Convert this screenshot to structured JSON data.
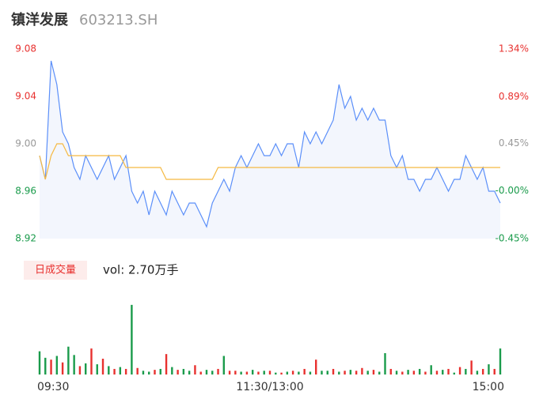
{
  "chart_data": [
    {
      "type": "line",
      "title": "镇洋发展",
      "subtitle": "603213.SH",
      "x": [
        0,
        3,
        6,
        9,
        12,
        15,
        18,
        21,
        24,
        27,
        30,
        33,
        36,
        39,
        42,
        45,
        48,
        51,
        54,
        57,
        60,
        63,
        66,
        69,
        72,
        75,
        78,
        81,
        84,
        87,
        90,
        93,
        96,
        99,
        102,
        105,
        108,
        111,
        114,
        117,
        120,
        123,
        126,
        129,
        132,
        135,
        138,
        141,
        144,
        147,
        150,
        153,
        156,
        159,
        162,
        165,
        168,
        171,
        174,
        177,
        180,
        183,
        186,
        189,
        192,
        195,
        198,
        201,
        204,
        207,
        210,
        213,
        216,
        219,
        222,
        225,
        228,
        231,
        234,
        237,
        240
      ],
      "xlim": [
        0,
        240
      ],
      "xticks": [
        {
          "value": 0,
          "label": "09:30"
        },
        {
          "value": 120,
          "label": "11:30/13:00"
        },
        {
          "value": 240,
          "label": "15:00"
        }
      ],
      "series": [
        {
          "color": "#5b8ff9",
          "values": [
            8.99,
            8.97,
            9.07,
            9.05,
            9.01,
            9.0,
            8.98,
            8.97,
            8.99,
            8.98,
            8.97,
            8.98,
            8.99,
            8.97,
            8.98,
            8.99,
            8.96,
            8.95,
            8.96,
            8.94,
            8.96,
            8.95,
            8.94,
            8.96,
            8.95,
            8.94,
            8.95,
            8.95,
            8.94,
            8.93,
            8.95,
            8.96,
            8.97,
            8.96,
            8.98,
            8.99,
            8.98,
            8.99,
            9.0,
            8.99,
            8.99,
            9.0,
            8.99,
            9.0,
            9.0,
            8.98,
            9.01,
            9.0,
            9.01,
            9.0,
            9.01,
            9.02,
            9.05,
            9.03,
            9.04,
            9.02,
            9.03,
            9.02,
            9.03,
            9.02,
            9.02,
            8.99,
            8.98,
            8.99,
            8.97,
            8.97,
            8.96,
            8.97,
            8.97,
            8.98,
            8.97,
            8.96,
            8.97,
            8.97,
            8.99,
            8.98,
            8.97,
            8.98,
            8.96,
            8.96,
            8.95
          ]
        },
        {
          "color": "#f5b942",
          "values": [
            8.99,
            8.97,
            8.99,
            9.0,
            9.0,
            8.99,
            8.99,
            8.99,
            8.99,
            8.99,
            8.99,
            8.99,
            8.99,
            8.99,
            8.99,
            8.98,
            8.98,
            8.98,
            8.98,
            8.98,
            8.98,
            8.98,
            8.97,
            8.97,
            8.97,
            8.97,
            8.97,
            8.97,
            8.97,
            8.97,
            8.97,
            8.98,
            8.98,
            8.98,
            8.98,
            8.98,
            8.98,
            8.98,
            8.98,
            8.98,
            8.98,
            8.98,
            8.98,
            8.98,
            8.98,
            8.98,
            8.98,
            8.98,
            8.98,
            8.98,
            8.98,
            8.98,
            8.98,
            8.98,
            8.98,
            8.98,
            8.98,
            8.98,
            8.98,
            8.98,
            8.98,
            8.98,
            8.98,
            8.98,
            8.98,
            8.98,
            8.98,
            8.98,
            8.98,
            8.98,
            8.98,
            8.98,
            8.98,
            8.98,
            8.98,
            8.98,
            8.98,
            8.98,
            8.98,
            8.98,
            8.98
          ]
        }
      ],
      "area_color": "#f3f6fd",
      "ylim": [
        8.92,
        9.08
      ],
      "yticks": [
        {
          "value": 9.08,
          "label": "9.08"
        },
        {
          "value": 9.04,
          "label": "9.04"
        },
        {
          "value": 9.0,
          "label": "9.00"
        },
        8.96,
        8.92
      ],
      "ytick_colors": [
        "#e8312f",
        "#e8312f",
        "#999999",
        "#1a9b4b",
        "#1a9b4b"
      ],
      "y2lim": [
        -0.45,
        1.34
      ],
      "y2ticks": [
        {
          "value": 1.34,
          "label": "1.34%"
        },
        {
          "value": 0.89,
          "label": "0.89%"
        },
        {
          "value": 0.45,
          "label": "0.45%"
        },
        {
          "value": 0,
          "label": "-0.00%"
        },
        {
          "value": -0.45,
          "label": "-0.45%"
        }
      ],
      "y2tick_colors": [
        "#e8312f",
        "#e8312f",
        "#999999",
        "#1a9b4b",
        "#1a9b4b"
      ]
    },
    {
      "type": "bar",
      "legend_button": "日成交量",
      "summary": "vol: 2.70万手",
      "ylim": [
        0,
        800
      ],
      "values": [
        250,
        180,
        160,
        200,
        130,
        300,
        210,
        90,
        120,
        280,
        110,
        170,
        90,
        60,
        80,
        60,
        750,
        70,
        40,
        30,
        50,
        60,
        220,
        80,
        50,
        60,
        40,
        100,
        30,
        50,
        40,
        60,
        200,
        40,
        40,
        30,
        30,
        50,
        30,
        40,
        40,
        20,
        20,
        30,
        40,
        30,
        60,
        30,
        160,
        40,
        40,
        60,
        30,
        40,
        50,
        40,
        70,
        40,
        50,
        30,
        230,
        60,
        40,
        30,
        50,
        40,
        60,
        30,
        100,
        40,
        50,
        60,
        20,
        80,
        60,
        150,
        40,
        60,
        110,
        60,
        280
      ],
      "colors": [
        "#1a9b4b",
        "#1a9b4b",
        "#e8312f",
        "#1a9b4b",
        "#e8312f",
        "#1a9b4b",
        "#1a9b4b",
        "#e8312f",
        "#1a9b4b",
        "#e8312f",
        "#1a9b4b",
        "#e8312f",
        "#1a9b4b",
        "#e8312f",
        "#1a9b4b",
        "#e8312f",
        "#1a9b4b",
        "#e8312f",
        "#1a9b4b",
        "#1a9b4b",
        "#e8312f",
        "#1a9b4b",
        "#e8312f",
        "#1a9b4b",
        "#e8312f",
        "#1a9b4b",
        "#1a9b4b",
        "#e8312f",
        "#e8312f",
        "#1a9b4b",
        "#1a9b4b",
        "#e8312f",
        "#1a9b4b",
        "#e8312f",
        "#e8312f",
        "#1a9b4b",
        "#e8312f",
        "#1a9b4b",
        "#e8312f",
        "#1a9b4b",
        "#e8312f",
        "#1a9b4b",
        "#e8312f",
        "#1a9b4b",
        "#e8312f",
        "#1a9b4b",
        "#e8312f",
        "#1a9b4b",
        "#e8312f",
        "#1a9b4b",
        "#1a9b4b",
        "#e8312f",
        "#1a9b4b",
        "#e8312f",
        "#1a9b4b",
        "#e8312f",
        "#e8312f",
        "#1a9b4b",
        "#e8312f",
        "#1a9b4b",
        "#1a9b4b",
        "#e8312f",
        "#1a9b4b",
        "#e8312f",
        "#1a9b4b",
        "#e8312f",
        "#1a9b4b",
        "#e8312f",
        "#1a9b4b",
        "#e8312f",
        "#1a9b4b",
        "#e8312f",
        "#1a9b4b",
        "#e8312f",
        "#1a9b4b",
        "#e8312f",
        "#1a9b4b",
        "#e8312f",
        "#1a9b4b",
        "#e8312f",
        "#1a9b4b"
      ]
    }
  ]
}
